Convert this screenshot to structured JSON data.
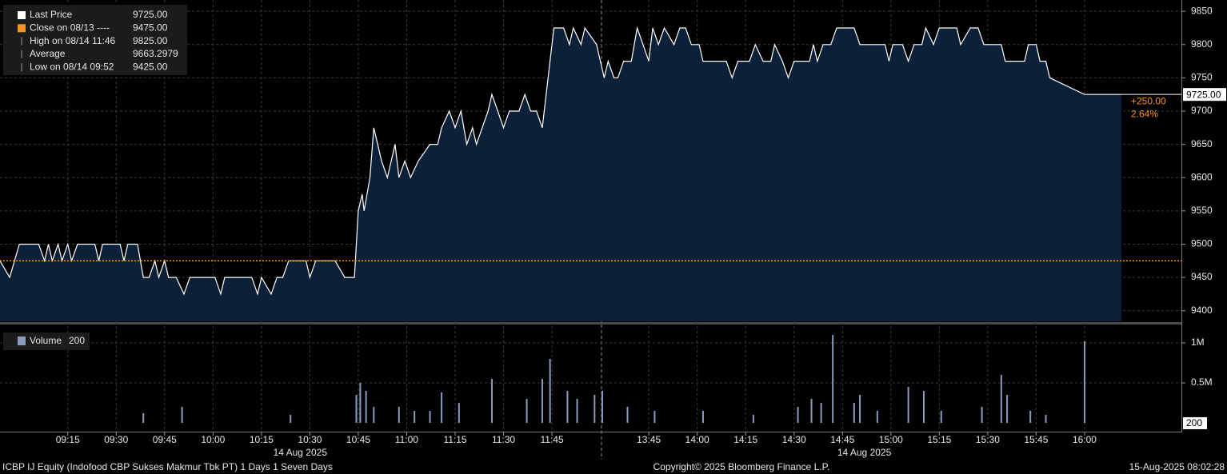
{
  "chart_data": [
    {
      "type": "area",
      "legend": [
        {
          "label": "Last Price",
          "value": "9725.00"
        },
        {
          "label": "Close on 08/13 ----",
          "value": "9475.00"
        },
        {
          "label": "High on 08/14 11:46",
          "value": "9825.00"
        },
        {
          "label": "Average",
          "value": "9663.2979"
        },
        {
          "label": "Low on 08/14 09:52",
          "value": "9425.00"
        }
      ],
      "series": [
        {
          "name": "Last Price",
          "color": "#ffffff",
          "fill": "#0c2039",
          "values": [
            9475,
            9450,
            9500,
            9500,
            9475,
            9500,
            9475,
            9500,
            9475,
            9500,
            9475,
            9500,
            9500,
            9475,
            9500,
            9500,
            9475,
            9500,
            9500,
            9450,
            9450,
            9475,
            9450,
            9475,
            9450,
            9450,
            9425,
            9450,
            9450,
            9425,
            9450,
            9450,
            9425,
            9450,
            9425,
            9450,
            9450,
            9475,
            9475,
            9450,
            9475,
            9475,
            9450,
            9450,
            9550,
            9575,
            9550,
            9600,
            9675,
            9625,
            9600,
            9650,
            9600,
            9625,
            9600,
            9625,
            9650,
            9650,
            9675,
            9700,
            9675,
            9700,
            9650,
            9675,
            9650,
            9675,
            9700,
            9725,
            9700,
            9675,
            9700,
            9700,
            9725,
            9700,
            9700,
            9675,
            9750,
            9825,
            9825,
            9800,
            9825,
            9800,
            9825,
            9800,
            9750,
            9775,
            9750,
            9750,
            9775,
            9775,
            9825,
            9800,
            9775,
            9825,
            9800,
            9825,
            9800,
            9825,
            9825,
            9800,
            9800,
            9775,
            9775,
            9750,
            9775,
            9775,
            9800,
            9775,
            9775,
            9800,
            9775,
            9750,
            9775,
            9775,
            9800,
            9775,
            9800,
            9800,
            9825,
            9825,
            9800,
            9800,
            9775,
            9800,
            9800,
            9775,
            9800,
            9800,
            9825,
            9800,
            9825,
            9825,
            9800,
            9825,
            9825,
            9800,
            9800,
            9775,
            9775,
            9800,
            9800,
            9775,
            9775,
            9750,
            9725,
            9725
          ]
        }
      ],
      "x": [
        8.9,
        8.95,
        9.0,
        9.1,
        9.13,
        9.15,
        9.17,
        9.2,
        9.22,
        9.25,
        9.27,
        9.3,
        9.39,
        9.41,
        9.43,
        9.52,
        9.54,
        9.56,
        9.61,
        9.64,
        9.67,
        9.7,
        9.72,
        9.75,
        9.77,
        9.81,
        9.85,
        9.88,
        10.01,
        10.04,
        10.06,
        10.2,
        10.23,
        10.25,
        10.3,
        10.33,
        10.36,
        10.39,
        10.48,
        10.5,
        10.53,
        10.63,
        10.68,
        10.73,
        10.75,
        10.77,
        10.78,
        10.81,
        10.83,
        10.87,
        10.9,
        10.94,
        10.96,
        10.99,
        11.02,
        11.06,
        11.12,
        11.16,
        11.18,
        11.22,
        11.25,
        11.28,
        11.31,
        11.34,
        11.36,
        11.39,
        11.42,
        11.44,
        11.47,
        11.5,
        11.53,
        11.58,
        11.61,
        11.64,
        11.67,
        11.7,
        11.73,
        11.76,
        11.81,
        11.84,
        11.86,
        11.9,
        11.92,
        11.98,
        13.52,
        13.54,
        13.57,
        13.59,
        13.62,
        13.66,
        13.69,
        13.72,
        13.75,
        13.77,
        13.8,
        13.83,
        13.88,
        13.91,
        13.94,
        13.97,
        14.01,
        14.03,
        14.15,
        14.18,
        14.21,
        14.27,
        14.3,
        14.34,
        14.38,
        14.4,
        14.44,
        14.47,
        14.5,
        14.58,
        14.6,
        14.62,
        14.65,
        14.69,
        14.72,
        14.81,
        14.84,
        14.97,
        14.99,
        15.01,
        15.06,
        15.09,
        15.12,
        15.16,
        15.18,
        15.22,
        15.25,
        15.34,
        15.36,
        15.41,
        15.45,
        15.48,
        15.57,
        15.59,
        15.69,
        15.71,
        15.75,
        15.77,
        15.8,
        15.82,
        16.0,
        16.19
      ],
      "xlim": [
        8.9,
        16.5
      ],
      "xbreak": [
        12,
        13.5
      ],
      "xticks": [
        {
          "value": 9.25,
          "label": "09:15"
        },
        {
          "value": 9.5,
          "label": "09:30"
        },
        {
          "value": 9.75,
          "label": "09:45"
        },
        {
          "value": 10,
          "label": "10:00"
        },
        {
          "value": 10.25,
          "label": "10:15"
        },
        {
          "value": 10.5,
          "label": "10:30"
        },
        {
          "value": 10.75,
          "label": "10:45"
        },
        {
          "value": 11,
          "label": "11:00"
        },
        {
          "value": 11.25,
          "label": "11:15"
        },
        {
          "value": 11.5,
          "label": "11:30"
        },
        {
          "value": 11.75,
          "label": "11:45"
        },
        {
          "value": 13.75,
          "label": "13:45"
        },
        {
          "value": 14,
          "label": "14:00"
        },
        {
          "value": 14.25,
          "label": "14:15"
        },
        {
          "value": 14.5,
          "label": "14:30"
        },
        {
          "value": 14.75,
          "label": "14:45"
        },
        {
          "value": 15,
          "label": "15:00"
        },
        {
          "value": 15.25,
          "label": "15:15"
        },
        {
          "value": 15.5,
          "label": "15:30"
        },
        {
          "value": 15.75,
          "label": "15:45"
        },
        {
          "value": 16,
          "label": "16:00"
        }
      ],
      "x_date_labels": [
        "14 Aug 2025",
        "14 Aug 2025"
      ],
      "ylim": [
        9384,
        9867
      ],
      "yticks": [
        9400,
        9450,
        9500,
        9550,
        9600,
        9650,
        9700,
        9750,
        9800,
        9850
      ],
      "grid": true,
      "close_value": 9475,
      "close_color": "#f7941d",
      "last_value": {
        "value": 9725,
        "label": "9725.00"
      },
      "change": "+250.00",
      "change_pct": "2.64%"
    },
    {
      "type": "bar",
      "series": [
        {
          "name": "Volume",
          "color": "#8a9cc0",
          "values": [
            120000,
            200000,
            100000,
            350000,
            500000,
            400000,
            200000,
            200000,
            150000,
            150000,
            380000,
            250000,
            550000,
            300000,
            550000,
            800000,
            400000,
            300000,
            350000,
            400000,
            200000,
            150000,
            150000,
            100000,
            200000,
            300000,
            250000,
            1100000,
            250000,
            350000,
            150000,
            450000,
            400000,
            150000,
            200000,
            600000,
            350000,
            150000,
            100000,
            1020000
          ]
        }
      ],
      "x": [
        9.64,
        9.84,
        10.4,
        10.74,
        10.76,
        10.79,
        10.83,
        10.96,
        11.04,
        11.12,
        11.18,
        11.27,
        11.44,
        11.62,
        11.7,
        11.74,
        11.83,
        11.88,
        11.97,
        13.51,
        13.64,
        13.78,
        14.03,
        14.29,
        14.52,
        14.59,
        14.64,
        14.7,
        14.81,
        14.84,
        14.93,
        15.09,
        15.17,
        15.26,
        15.47,
        15.57,
        15.6,
        15.72,
        15.8,
        16.0
      ],
      "xlim": [
        8.9,
        16.5
      ],
      "xbreak": [
        12,
        13.5
      ],
      "ylim": [
        -110000,
        1210000
      ],
      "yticks": [
        {
          "value": 500000,
          "label": "0.5M"
        },
        {
          "value": 1000000,
          "label": "1M"
        }
      ],
      "last_volume": 200
    }
  ],
  "footer": {
    "left": "ICBP IJ Equity (Indofood CBP Sukses Makmur Tbk PT) 1 Days 1 Seven Days",
    "center": "Copyright© 2025 Bloomberg Finance L.P.",
    "right": "15-Aug-2025 08:02:28"
  }
}
